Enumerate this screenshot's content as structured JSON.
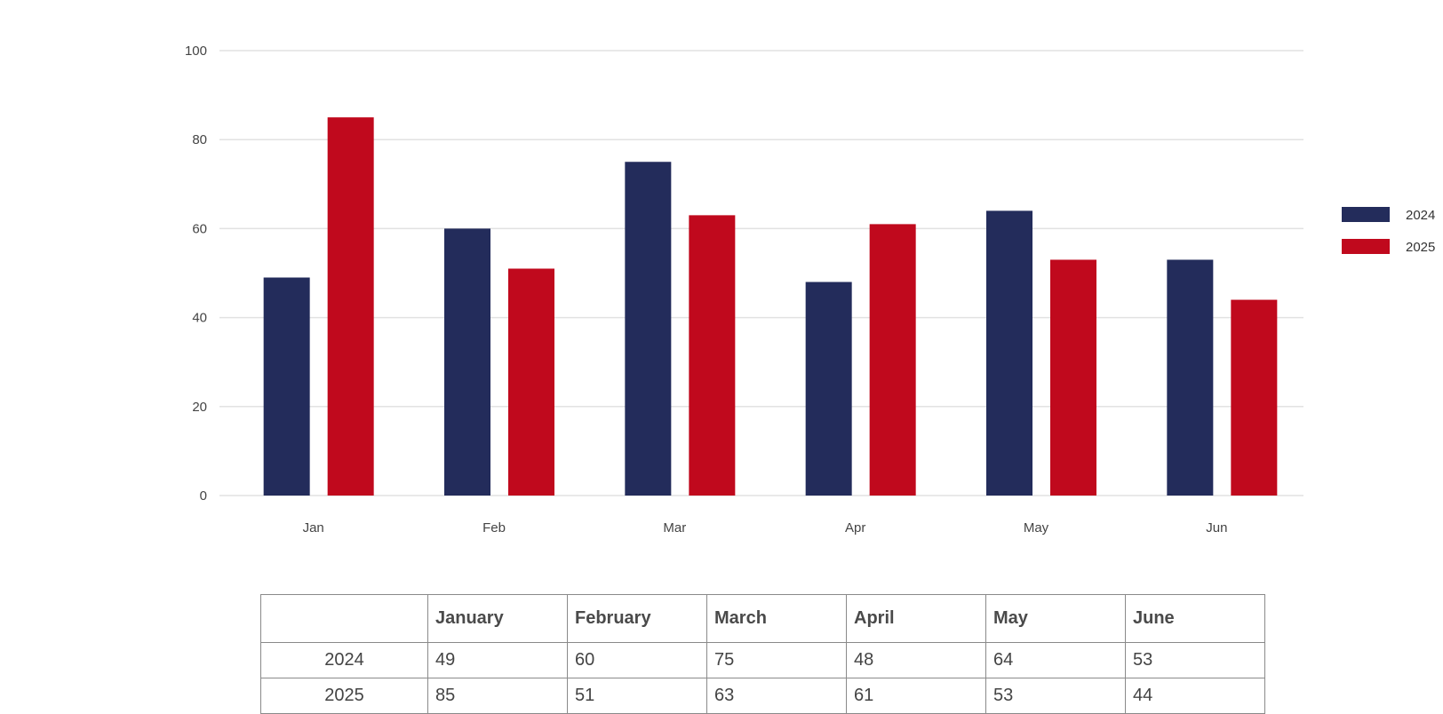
{
  "chart_data": {
    "type": "bar",
    "categories": [
      "Jan",
      "Feb",
      "Mar",
      "Apr",
      "May",
      "Jun"
    ],
    "series": [
      {
        "name": "2024",
        "color": "#232c5b",
        "values": [
          49,
          60,
          75,
          48,
          64,
          53
        ]
      },
      {
        "name": "2025",
        "color": "#c0091d",
        "values": [
          85,
          51,
          63,
          61,
          53,
          44
        ]
      }
    ],
    "yticks": [
      "0",
      "20",
      "40",
      "60",
      "80",
      "100"
    ],
    "ylim": [
      0,
      100
    ],
    "grid": true,
    "legend_position": "right"
  },
  "table": {
    "headers": [
      "",
      "January",
      "February",
      "March",
      "April",
      "May",
      "June"
    ],
    "rows": [
      {
        "label": "2024",
        "cells": [
          "49",
          "60",
          "75",
          "48",
          "64",
          "53"
        ]
      },
      {
        "label": "2025",
        "cells": [
          "85",
          "51",
          "63",
          "61",
          "53",
          "44"
        ]
      }
    ]
  }
}
